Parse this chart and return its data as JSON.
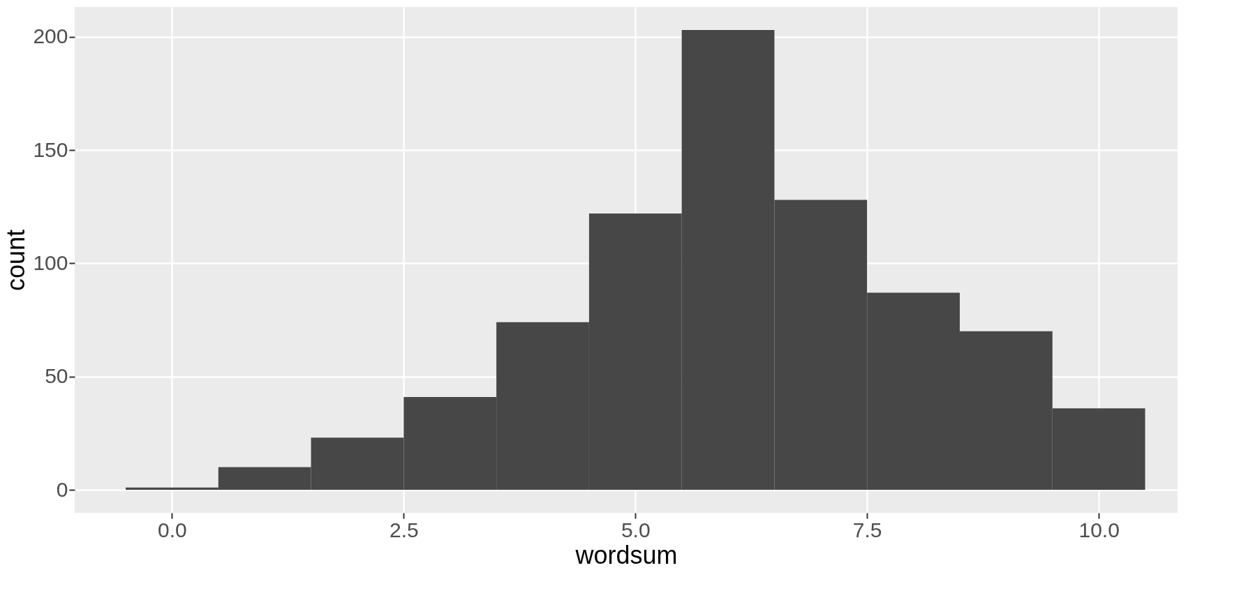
{
  "chart_data": {
    "type": "histogram",
    "xlabel": "wordsum",
    "ylabel": "count",
    "bins": [
      -0.5,
      0.5,
      1.5,
      2.5,
      3.5,
      4.5,
      5.5,
      6.5,
      7.5,
      8.5,
      9.5,
      10.5
    ],
    "values": [
      1,
      10,
      23,
      41,
      74,
      122,
      203,
      128,
      87,
      70,
      36
    ],
    "color": "#474747",
    "xlim": [
      -1.05,
      10.85
    ],
    "xticks": [
      {
        "value": 0,
        "label": "0.0"
      },
      {
        "value": 2.5,
        "label": "2.5"
      },
      {
        "value": 5,
        "label": "5.0"
      },
      {
        "value": 7.5,
        "label": "7.5"
      },
      {
        "value": 10,
        "label": "10.0"
      }
    ],
    "ylim": [
      -10.15,
      213.15
    ],
    "yticks": [
      0,
      50,
      100,
      150,
      200
    ],
    "grid": true
  }
}
